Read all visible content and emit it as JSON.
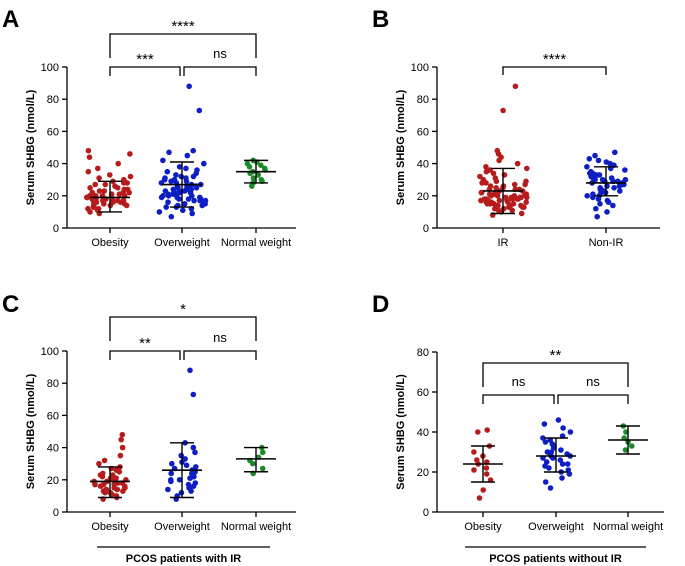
{
  "chart_data": [
    {
      "panel": "A",
      "type": "scatter",
      "ylabel": "Serum SHBG (nmol/L)",
      "ylim": [
        0,
        100
      ],
      "yticks": [
        0,
        20,
        40,
        60,
        80,
        100
      ],
      "categories": [
        "Obesity",
        "Overweight",
        "Normal weight"
      ],
      "colors": [
        "#b71c1c",
        "#0d1fc4",
        "#1b8a2a"
      ],
      "stats": [
        {
          "mean": 19,
          "sd_low": 10,
          "sd_high": 29
        },
        {
          "mean": 27,
          "sd_low": 13,
          "sd_high": 41
        },
        {
          "mean": 35,
          "sd_low": 28,
          "sd_high": 42
        }
      ],
      "points": [
        [
          9,
          10,
          11,
          12,
          12,
          13,
          13,
          14,
          14,
          14,
          15,
          15,
          15,
          16,
          16,
          16,
          16,
          17,
          17,
          17,
          17,
          18,
          18,
          18,
          18,
          18,
          19,
          19,
          19,
          19,
          20,
          20,
          20,
          20,
          21,
          21,
          21,
          22,
          22,
          22,
          23,
          23,
          24,
          24,
          25,
          25,
          26,
          27,
          27,
          28,
          28,
          29,
          30,
          31,
          32,
          33,
          35,
          37,
          40,
          44,
          46,
          48
        ],
        [
          7,
          9,
          10,
          11,
          12,
          13,
          13,
          14,
          14,
          15,
          15,
          16,
          16,
          17,
          17,
          17,
          18,
          18,
          18,
          19,
          19,
          19,
          20,
          20,
          20,
          21,
          21,
          21,
          22,
          22,
          22,
          23,
          23,
          23,
          24,
          24,
          24,
          25,
          25,
          25,
          26,
          26,
          26,
          27,
          27,
          28,
          28,
          29,
          29,
          30,
          30,
          31,
          31,
          32,
          32,
          33,
          34,
          35,
          36,
          37,
          38,
          40,
          42,
          45,
          47,
          48,
          73,
          88
        ],
        [
          26,
          28,
          29,
          30,
          31,
          33,
          34,
          35,
          36,
          37,
          38,
          39,
          40,
          41,
          42
        ]
      ],
      "comparisons": [
        {
          "from": 0,
          "to": 1,
          "label": "***"
        },
        {
          "from": 1,
          "to": 2,
          "label": "ns"
        },
        {
          "from": 0,
          "to": 2,
          "label": "****"
        }
      ]
    },
    {
      "panel": "B",
      "type": "scatter",
      "ylabel": "Serum SHBG (nmol/L)",
      "ylim": [
        0,
        100
      ],
      "yticks": [
        0,
        20,
        40,
        60,
        80,
        100
      ],
      "categories": [
        "IR",
        "Non-IR"
      ],
      "colors": [
        "#b71c1c",
        "#0d1fc4"
      ],
      "stats": [
        {
          "mean": 23,
          "sd_low": 9,
          "sd_high": 37
        },
        {
          "mean": 28,
          "sd_low": 20,
          "sd_high": 38
        }
      ],
      "points": [
        [
          8,
          9,
          10,
          11,
          11,
          12,
          12,
          13,
          13,
          13,
          14,
          14,
          14,
          15,
          15,
          15,
          15,
          16,
          16,
          16,
          16,
          17,
          17,
          17,
          17,
          18,
          18,
          18,
          18,
          18,
          19,
          19,
          19,
          19,
          19,
          20,
          20,
          20,
          20,
          21,
          21,
          21,
          21,
          22,
          22,
          22,
          23,
          23,
          23,
          24,
          24,
          24,
          25,
          25,
          26,
          26,
          27,
          27,
          28,
          28,
          29,
          29,
          30,
          31,
          32,
          33,
          34,
          35,
          36,
          37,
          38,
          40,
          42,
          44,
          46,
          48,
          73,
          88
        ],
        [
          7,
          10,
          12,
          14,
          15,
          16,
          17,
          18,
          19,
          20,
          20,
          21,
          22,
          22,
          23,
          23,
          24,
          24,
          25,
          25,
          26,
          26,
          27,
          27,
          27,
          28,
          28,
          28,
          29,
          29,
          29,
          30,
          30,
          30,
          31,
          31,
          32,
          32,
          33,
          33,
          34,
          34,
          35,
          36,
          37,
          38,
          39,
          40,
          41,
          42,
          43,
          45,
          47
        ]
      ],
      "comparisons": [
        {
          "from": 0,
          "to": 1,
          "label": "****"
        }
      ]
    },
    {
      "panel": "C",
      "type": "scatter",
      "ylabel": "Serum SHBG (nmol/L)",
      "ylim": [
        0,
        100
      ],
      "yticks": [
        0,
        20,
        40,
        60,
        80,
        100
      ],
      "categories": [
        "Obesity",
        "Overweight",
        "Normal weight"
      ],
      "colors": [
        "#b71c1c",
        "#0d1fc4",
        "#1b8a2a"
      ],
      "stats": [
        {
          "mean": 19,
          "sd_low": 9,
          "sd_high": 28
        },
        {
          "mean": 26,
          "sd_low": 9,
          "sd_high": 43
        },
        {
          "mean": 33,
          "sd_low": 25,
          "sd_high": 40
        }
      ],
      "points": [
        [
          8,
          9,
          10,
          11,
          12,
          12,
          13,
          13,
          14,
          14,
          15,
          15,
          16,
          16,
          17,
          17,
          17,
          18,
          18,
          18,
          19,
          19,
          20,
          20,
          21,
          21,
          22,
          23,
          23,
          24,
          25,
          26,
          27,
          28,
          30,
          32,
          35,
          40,
          45,
          48
        ],
        [
          8,
          10,
          12,
          13,
          14,
          15,
          16,
          17,
          18,
          19,
          20,
          20,
          21,
          22,
          22,
          23,
          24,
          24,
          25,
          26,
          27,
          28,
          29,
          30,
          31,
          33,
          35,
          37,
          40,
          43,
          73,
          88
        ],
        [
          24,
          27,
          30,
          32,
          34,
          37,
          40
        ]
      ],
      "comparisons": [
        {
          "from": 0,
          "to": 1,
          "label": "**"
        },
        {
          "from": 1,
          "to": 2,
          "label": "ns"
        },
        {
          "from": 0,
          "to": 2,
          "label": "*"
        }
      ],
      "footer": "PCOS patients with IR"
    },
    {
      "panel": "D",
      "type": "scatter",
      "ylabel": "Serum SHBG (nmol/L)",
      "ylim": [
        0,
        80
      ],
      "yticks": [
        0,
        20,
        40,
        60,
        80
      ],
      "categories": [
        "Obesity",
        "Overweight",
        "Normal weight"
      ],
      "colors": [
        "#b71c1c",
        "#0d1fc4",
        "#1b8a2a"
      ],
      "stats": [
        {
          "mean": 24,
          "sd_low": 15,
          "sd_high": 33
        },
        {
          "mean": 28,
          "sd_low": 20,
          "sd_high": 37
        },
        {
          "mean": 36,
          "sd_low": 29,
          "sd_high": 43
        }
      ],
      "points": [
        [
          7,
          11,
          16,
          19,
          21,
          22,
          24,
          25,
          26,
          28,
          30,
          33,
          40,
          41
        ],
        [
          12,
          15,
          17,
          19,
          20,
          21,
          22,
          23,
          24,
          24,
          25,
          26,
          27,
          27,
          28,
          28,
          29,
          29,
          30,
          30,
          31,
          32,
          33,
          34,
          35,
          36,
          37,
          38,
          40,
          42,
          44,
          46
        ],
        [
          31,
          33,
          35,
          37,
          40,
          43
        ]
      ],
      "comparisons": [
        {
          "from": 0,
          "to": 1,
          "label": "ns"
        },
        {
          "from": 1,
          "to": 2,
          "label": "ns"
        },
        {
          "from": 0,
          "to": 2,
          "label": "**"
        }
      ],
      "footer": "PCOS patients without IR"
    }
  ]
}
